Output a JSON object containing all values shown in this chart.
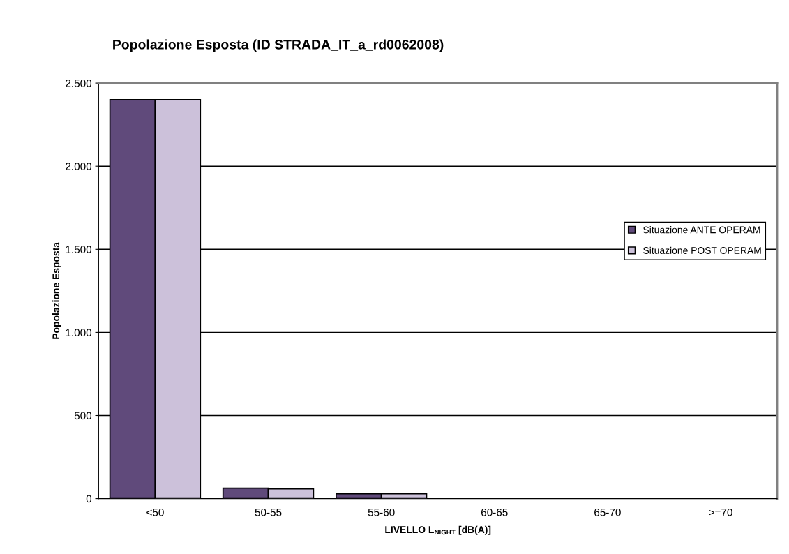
{
  "chart_data": {
    "type": "bar",
    "title": "Popolazione Esposta (ID STRADA_IT_a_rd0062008)",
    "xlabel": "LIVELLO L$_{NIGHT}$ [dB(A)]",
    "ylabel": "Popolazione Esposta",
    "categories": [
      "<50",
      "50-55",
      "55-60",
      "60-65",
      "65-70",
      ">=70"
    ],
    "series": [
      {
        "name": "Situazione ANTE OPERAM",
        "color": "#604a7b",
        "values": [
          2400,
          63,
          29,
          0,
          0,
          0
        ]
      },
      {
        "name": "Situazione POST OPERAM",
        "color": "#ccc1da",
        "values": [
          2400,
          59,
          29,
          0,
          0,
          0
        ]
      }
    ],
    "ylim": [
      0,
      2500
    ],
    "yticks": [
      {
        "value": 0,
        "label": "0"
      },
      {
        "value": 500,
        "label": "500"
      },
      {
        "value": 1000,
        "label": "1.000"
      },
      {
        "value": 1500,
        "label": "1.500"
      },
      {
        "value": 2000,
        "label": "2.000"
      },
      {
        "value": 2500,
        "label": "2.500"
      }
    ],
    "grid": "y",
    "legend": "right"
  }
}
